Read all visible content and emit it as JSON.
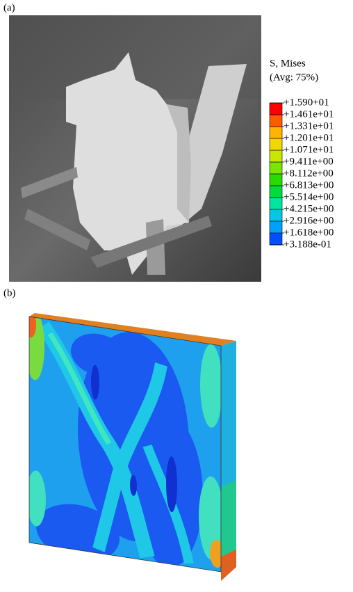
{
  "panel_a": {
    "label": "(a)"
  },
  "panel_b": {
    "label": "(b)"
  },
  "legend": {
    "title": "S, Mises",
    "subtitle": "(Avg: 75%)",
    "labels": [
      "+1.590+01",
      "+1.461e+01",
      "+1.331e+01",
      "+1.201e+01",
      "+1.071e+01",
      "+9.411e+00",
      "+8.112e+00",
      "+6.813e+00",
      "+5.514e+00",
      "+4.215e+00",
      "+2.916e+00",
      "+1.618e+00",
      "+3.188e-01"
    ],
    "colors": [
      "#ff0000",
      "#ff5a00",
      "#ffb400",
      "#f0d800",
      "#c8e600",
      "#78e600",
      "#28dc00",
      "#00dc3c",
      "#00e6a0",
      "#00c8e6",
      "#00a0ff",
      "#0050ff"
    ]
  }
}
